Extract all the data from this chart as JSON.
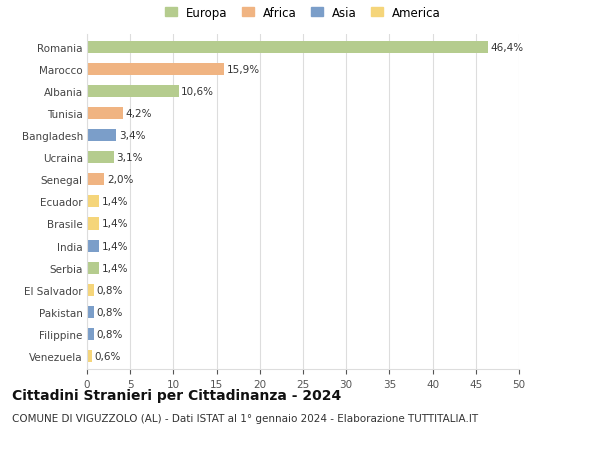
{
  "countries": [
    "Romania",
    "Marocco",
    "Albania",
    "Tunisia",
    "Bangladesh",
    "Ucraina",
    "Senegal",
    "Ecuador",
    "Brasile",
    "India",
    "Serbia",
    "El Salvador",
    "Pakistan",
    "Filippine",
    "Venezuela"
  ],
  "values": [
    46.4,
    15.9,
    10.6,
    4.2,
    3.4,
    3.1,
    2.0,
    1.4,
    1.4,
    1.4,
    1.4,
    0.8,
    0.8,
    0.8,
    0.6
  ],
  "labels": [
    "46,4%",
    "15,9%",
    "10,6%",
    "4,2%",
    "3,4%",
    "3,1%",
    "2,0%",
    "1,4%",
    "1,4%",
    "1,4%",
    "1,4%",
    "0,8%",
    "0,8%",
    "0,8%",
    "0,6%"
  ],
  "continents": [
    "Europa",
    "Africa",
    "Europa",
    "Africa",
    "Asia",
    "Europa",
    "Africa",
    "America",
    "America",
    "Asia",
    "Europa",
    "America",
    "Asia",
    "Asia",
    "America"
  ],
  "continent_colors": {
    "Europa": "#b5cc8e",
    "Africa": "#f0b482",
    "Asia": "#7b9ec9",
    "America": "#f5d57a"
  },
  "legend_order": [
    "Europa",
    "Africa",
    "Asia",
    "America"
  ],
  "title": "Cittadini Stranieri per Cittadinanza - 2024",
  "subtitle": "COMUNE DI VIGUZZOLO (AL) - Dati ISTAT al 1° gennaio 2024 - Elaborazione TUTTITALIA.IT",
  "xlim": [
    0,
    50
  ],
  "xticks": [
    0,
    5,
    10,
    15,
    20,
    25,
    30,
    35,
    40,
    45,
    50
  ],
  "background_color": "#ffffff",
  "grid_color": "#dddddd",
  "title_fontsize": 10,
  "subtitle_fontsize": 7.5,
  "label_fontsize": 7.5,
  "tick_fontsize": 7.5,
  "legend_fontsize": 8.5,
  "bar_height": 0.55
}
